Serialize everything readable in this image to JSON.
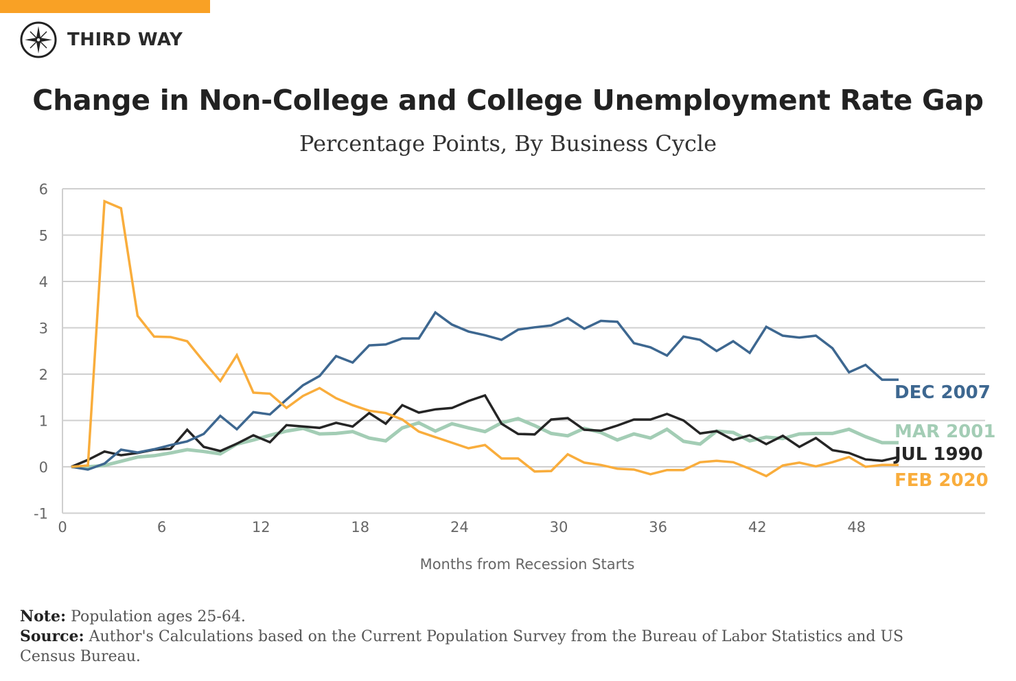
{
  "brand": {
    "name": "THIRD WAY",
    "accent": "#f9a125"
  },
  "chart_data": {
    "type": "line",
    "title": "Change in Non-College and College Unemployment Rate Gap",
    "subtitle": "Percentage Points, By Business Cycle",
    "xlabel": "Months from Recession Starts",
    "ylabel": "",
    "xlim": [
      0,
      55
    ],
    "ylim": [
      -1,
      6
    ],
    "xticks": [
      "0",
      "6",
      "12",
      "18",
      "24",
      "30",
      "36",
      "42",
      "48"
    ],
    "yticks": [
      "-1",
      "0",
      "1",
      "2",
      "3",
      "4",
      "5",
      "6"
    ],
    "grid": true,
    "legend": "inline-right",
    "x": [
      0,
      1,
      2,
      3,
      4,
      5,
      6,
      7,
      8,
      9,
      10,
      11,
      12,
      13,
      14,
      15,
      16,
      17,
      18,
      19,
      20,
      21,
      22,
      23,
      24,
      25,
      26,
      27,
      28,
      29,
      30,
      31,
      32,
      33,
      34,
      35,
      36,
      37,
      38,
      39,
      40,
      41,
      42,
      43,
      44,
      45,
      46,
      47,
      48,
      49,
      50
    ],
    "series": [
      {
        "name": "DEC 2007",
        "color": "#3d6790",
        "values": [
          0,
          -0.06,
          0.07,
          0.37,
          0.31,
          0.38,
          0.47,
          0.55,
          0.71,
          1.1,
          0.81,
          1.18,
          1.13,
          1.45,
          1.76,
          1.96,
          2.39,
          2.25,
          2.62,
          2.64,
          2.77,
          2.77,
          3.33,
          3.07,
          2.92,
          2.84,
          2.74,
          2.96,
          3.01,
          3.05,
          3.21,
          2.98,
          3.15,
          3.13,
          2.67,
          2.58,
          2.4,
          2.81,
          2.74,
          2.5,
          2.71,
          2.46,
          3.02,
          2.83,
          2.79,
          2.83,
          2.56,
          2.04,
          2.2,
          1.88,
          1.88
        ]
      },
      {
        "name": "MAR 2001",
        "color": "#a3cdb5",
        "values": [
          0,
          0,
          0.03,
          0.12,
          0.21,
          0.24,
          0.3,
          0.37,
          0.33,
          0.28,
          0.49,
          0.58,
          0.68,
          0.77,
          0.83,
          0.71,
          0.72,
          0.76,
          0.62,
          0.56,
          0.84,
          0.95,
          0.77,
          0.93,
          0.84,
          0.76,
          0.95,
          1.04,
          0.89,
          0.72,
          0.67,
          0.83,
          0.74,
          0.58,
          0.71,
          0.62,
          0.81,
          0.55,
          0.49,
          0.77,
          0.74,
          0.56,
          0.64,
          0.61,
          0.71,
          0.72,
          0.72,
          0.81,
          0.65,
          0.52,
          0.52
        ]
      },
      {
        "name": "JUL 1990",
        "color": "#252525",
        "values": [
          0,
          0.15,
          0.33,
          0.25,
          0.3,
          0.37,
          0.39,
          0.8,
          0.43,
          0.34,
          0.5,
          0.68,
          0.53,
          0.9,
          0.87,
          0.84,
          0.95,
          0.87,
          1.16,
          0.93,
          1.33,
          1.17,
          1.24,
          1.27,
          1.42,
          1.54,
          0.93,
          0.71,
          0.7,
          1.02,
          1.05,
          0.8,
          0.78,
          0.89,
          1.02,
          1.02,
          1.14,
          1.0,
          0.72,
          0.77,
          0.58,
          0.68,
          0.49,
          0.67,
          0.43,
          0.62,
          0.36,
          0.3,
          0.16,
          0.13,
          0.21
        ]
      },
      {
        "name": "FEB 2020",
        "color": "#f9ad3c",
        "values": [
          0,
          0.03,
          5.73,
          5.58,
          3.26,
          2.81,
          2.8,
          2.71,
          2.27,
          1.85,
          2.41,
          1.6,
          1.58,
          1.27,
          1.53,
          1.7,
          1.48,
          1.33,
          1.21,
          1.16,
          1.02,
          0.76,
          0.64,
          0.52,
          0.4,
          0.47,
          0.18,
          0.18,
          -0.1,
          -0.09,
          0.27,
          0.09,
          0.04,
          -0.04,
          -0.06,
          -0.16,
          -0.07,
          -0.07,
          0.1,
          0.13,
          0.1,
          -0.04,
          -0.2,
          0.03,
          0.09,
          0.01,
          0.1,
          0.21,
          0,
          0.04,
          0.04
        ]
      }
    ]
  },
  "notes": {
    "note_label": "Note:",
    "note_text": " Population ages 25-64.",
    "source_label": "Source:",
    "source_text": " Author's Calculations based on the Current Population Survey from the Bureau of Labor Statistics and US Census Bureau."
  }
}
